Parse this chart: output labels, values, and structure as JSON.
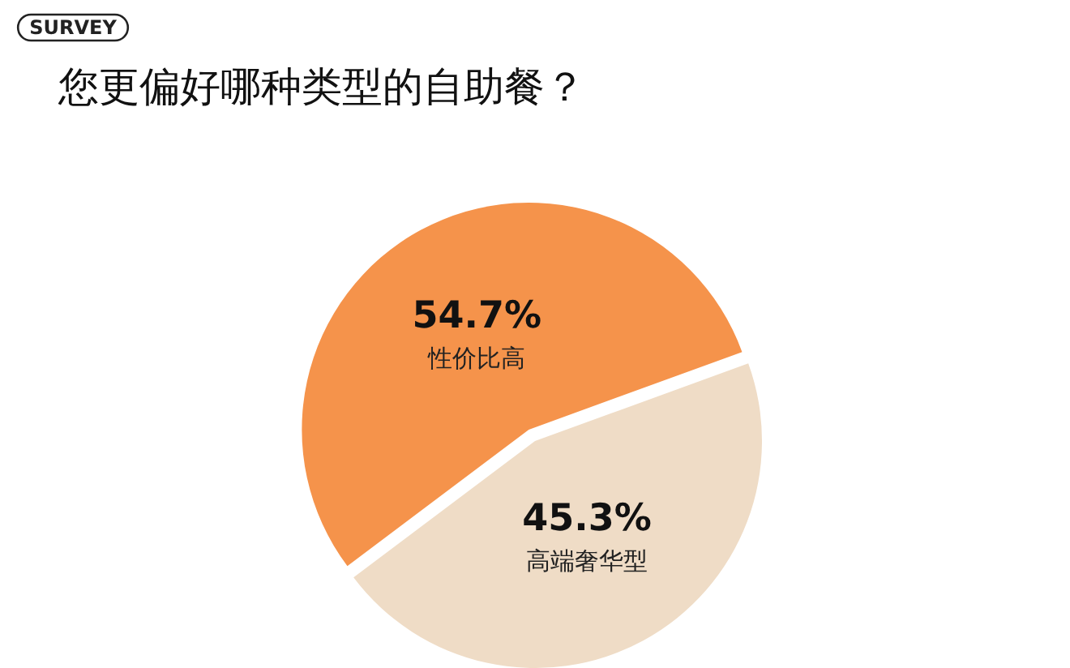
{
  "chart_data": {
    "type": "pie",
    "title": "您更偏好哪种类型的自助餐？",
    "annotations": [
      "SURVEY"
    ],
    "categories": [
      "性价比高",
      "高端奢华型"
    ],
    "values": [
      54.7,
      45.3
    ],
    "value_labels": [
      "54.7%",
      "45.3%"
    ],
    "colors": [
      "#f5934b",
      "#efdcc6"
    ]
  }
}
